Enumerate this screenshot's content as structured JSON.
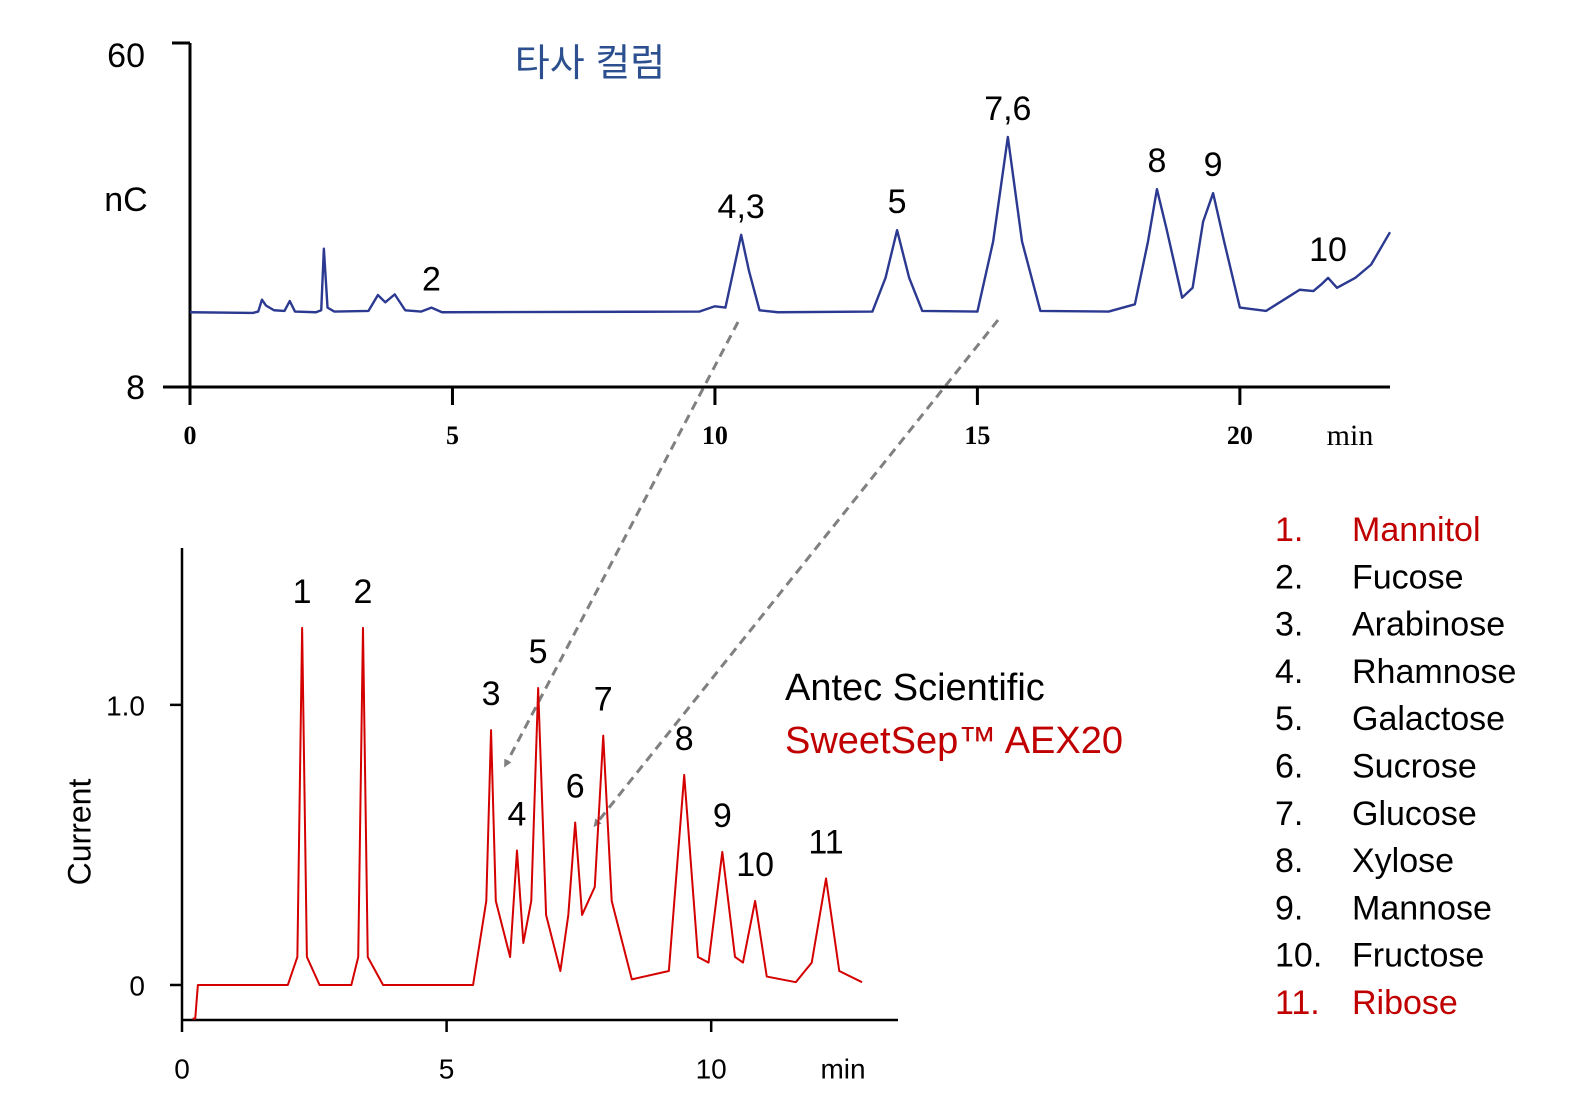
{
  "chart_data": [
    {
      "type": "line",
      "title": "타사 컬럼",
      "y_label": "nC",
      "x_label": "min",
      "color": "#2b3990",
      "xlim": [
        0,
        22.86
      ],
      "ylim": [
        8,
        60
      ],
      "xticks": [
        0,
        5,
        10,
        15,
        20
      ],
      "yticks": [
        8,
        60
      ],
      "x": [
        0,
        1.2,
        1.3,
        1.37,
        1.45,
        1.6,
        1.8,
        1.9,
        2.0,
        2.4,
        2.5,
        2.55,
        2.62,
        2.75,
        3.4,
        3.58,
        3.72,
        3.9,
        4.1,
        4.4,
        4.6,
        4.8,
        9.7,
        10.0,
        10.2,
        10.35,
        10.5,
        10.65,
        10.85,
        11.2,
        13.0,
        13.25,
        13.47,
        13.7,
        13.95,
        15.0,
        15.3,
        15.58,
        15.85,
        16.2,
        17.5,
        18.0,
        18.25,
        18.42,
        18.6,
        18.9,
        19.1,
        19.3,
        19.49,
        19.7,
        20.0,
        20.5,
        20.9,
        21.14,
        21.4,
        21.55,
        21.68,
        21.85,
        22.2,
        22.5,
        22.86
      ],
      "values": [
        19.3,
        19.2,
        19.4,
        21.2,
        20.3,
        19.6,
        19.5,
        21.0,
        19.4,
        19.3,
        19.6,
        28.9,
        20.0,
        19.4,
        19.5,
        21.9,
        20.8,
        22.0,
        19.6,
        19.4,
        20.0,
        19.3,
        19.4,
        20.2,
        20.0,
        25.5,
        31.0,
        25.5,
        19.6,
        19.3,
        19.4,
        24.5,
        31.7,
        24.5,
        19.5,
        19.4,
        30.0,
        45.8,
        30.0,
        19.5,
        19.4,
        20.5,
        30.0,
        37.9,
        32.0,
        21.5,
        23.0,
        33.0,
        37.3,
        30.0,
        20.0,
        19.5,
        21.5,
        22.7,
        22.5,
        23.5,
        24.5,
        23.0,
        24.5,
        26.5,
        31.4
      ],
      "peaks": [
        {
          "label": "2",
          "x": 4.6,
          "y": 20.0
        },
        {
          "label": "4,3",
          "x": 10.5,
          "y": 31.0
        },
        {
          "label": "5",
          "x": 13.47,
          "y": 31.7
        },
        {
          "label": "7,6",
          "x": 15.58,
          "y": 45.8
        },
        {
          "label": "8",
          "x": 18.42,
          "y": 37.9
        },
        {
          "label": "9",
          "x": 19.49,
          "y": 37.3
        },
        {
          "label": "10",
          "x": 21.68,
          "y": 24.5
        }
      ]
    },
    {
      "type": "line",
      "y_label": "Current",
      "x_label": "min",
      "color": "#d40000",
      "maker": "Antec Scientific",
      "product": "SweetSep™ AEX20",
      "xlim": [
        0,
        13.53
      ],
      "ylim": [
        -0.125,
        1.56
      ],
      "xticks": [
        0,
        5,
        10
      ],
      "yticks": [
        0,
        {
          "value": 1,
          "label": "1.0"
        }
      ],
      "x": [
        0.2,
        0.25,
        0.3,
        2.0,
        2.18,
        2.27,
        2.36,
        2.6,
        3.2,
        3.33,
        3.42,
        3.51,
        3.8,
        5.5,
        5.75,
        5.84,
        5.93,
        6.2,
        6.33,
        6.45,
        6.6,
        6.73,
        6.88,
        7.15,
        7.3,
        7.43,
        7.56,
        7.8,
        7.96,
        8.12,
        8.5,
        9.2,
        9.49,
        9.75,
        9.95,
        10.21,
        10.45,
        10.6,
        10.83,
        11.05,
        11.6,
        11.9,
        12.17,
        12.42,
        12.85
      ],
      "values": [
        -0.12,
        -0.12,
        0.0,
        0.0,
        0.1,
        1.275,
        0.1,
        0.0,
        0.0,
        0.1,
        1.275,
        0.1,
        0.0,
        0.0,
        0.3,
        0.91,
        0.3,
        0.1,
        0.48,
        0.15,
        0.3,
        1.06,
        0.25,
        0.05,
        0.25,
        0.58,
        0.25,
        0.35,
        0.89,
        0.3,
        0.02,
        0.05,
        0.75,
        0.1,
        0.08,
        0.475,
        0.1,
        0.08,
        0.3,
        0.03,
        0.01,
        0.08,
        0.38,
        0.05,
        0.01
      ],
      "peaks": [
        {
          "label": "1",
          "x": 2.27,
          "y": 1.275
        },
        {
          "label": "2",
          "x": 3.42,
          "y": 1.275
        },
        {
          "label": "3",
          "x": 5.84,
          "y": 0.91
        },
        {
          "label": "4",
          "x": 6.33,
          "y": 0.48
        },
        {
          "label": "5",
          "x": 6.73,
          "y": 1.06
        },
        {
          "label": "6",
          "x": 7.43,
          "y": 0.58
        },
        {
          "label": "7",
          "x": 7.96,
          "y": 0.89
        },
        {
          "label": "8",
          "x": 9.49,
          "y": 0.75
        },
        {
          "label": "9",
          "x": 10.21,
          "y": 0.475
        },
        {
          "label": "10",
          "x": 10.83,
          "y": 0.3
        },
        {
          "label": "11",
          "x": 12.17,
          "y": 0.38
        }
      ],
      "compounds": [
        {
          "number": "1.",
          "name": "Mannitol",
          "color": "#c00000"
        },
        {
          "number": "2.",
          "name": "Fucose",
          "color": "#000000"
        },
        {
          "number": "3.",
          "name": "Arabinose",
          "color": "#000000"
        },
        {
          "number": "4.",
          "name": "Rhamnose",
          "color": "#000000"
        },
        {
          "number": "5.",
          "name": "Galactose",
          "color": "#000000"
        },
        {
          "number": "6.",
          "name": "Sucrose",
          "color": "#000000"
        },
        {
          "number": "7.",
          "name": "Glucose",
          "color": "#000000"
        },
        {
          "number": "8.",
          "name": "Xylose",
          "color": "#000000"
        },
        {
          "number": "9.",
          "name": "Mannose",
          "color": "#000000"
        },
        {
          "number": "10.",
          "name": "Fructose",
          "color": "#000000"
        },
        {
          "number": "11.",
          "name": "Ribose",
          "color": "#c00000"
        }
      ]
    }
  ]
}
